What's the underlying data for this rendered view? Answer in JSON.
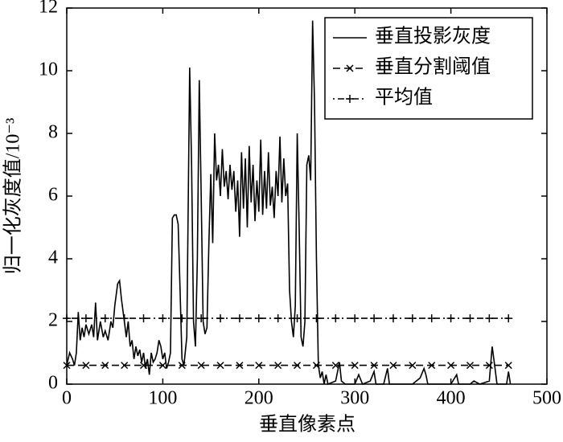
{
  "chart_data": {
    "type": "line",
    "xlabel": "垂直像素点",
    "ylabel": "归一化灰度值/10⁻³",
    "xlim": [
      0,
      500
    ],
    "xticks": [
      0,
      100,
      200,
      300,
      400,
      500
    ],
    "ylim": [
      0,
      12
    ],
    "yticks": [
      0,
      2,
      4,
      6,
      8,
      10,
      12
    ],
    "legend": "upper right",
    "grid": false,
    "series": [
      {
        "name": "垂直投影灰度",
        "color": "#000000",
        "linestyle": "solid",
        "marker": "none",
        "x": [
          0,
          3,
          6,
          8,
          10,
          12,
          14,
          16,
          18,
          20,
          23,
          26,
          28,
          30,
          32,
          35,
          38,
          40,
          43,
          46,
          48,
          50,
          53,
          55,
          57,
          60,
          62,
          64,
          66,
          68,
          70,
          72,
          74,
          76,
          78,
          80,
          82,
          84,
          86,
          88,
          90,
          92,
          94,
          96,
          98,
          100,
          102,
          104,
          106,
          108,
          110,
          112,
          114,
          116,
          118,
          120,
          122,
          125,
          128,
          130,
          132,
          134,
          136,
          138,
          140,
          142,
          144,
          146,
          148,
          150,
          152,
          154,
          156,
          158,
          160,
          162,
          164,
          166,
          168,
          170,
          172,
          174,
          176,
          178,
          180,
          182,
          184,
          186,
          188,
          190,
          192,
          194,
          196,
          198,
          200,
          202,
          204,
          206,
          208,
          210,
          212,
          214,
          216,
          218,
          220,
          222,
          224,
          226,
          228,
          230,
          232,
          234,
          236,
          238,
          240,
          242,
          244,
          246,
          248,
          250,
          252,
          254,
          256,
          258,
          260,
          262,
          264,
          266,
          268,
          270,
          272,
          280,
          284,
          286,
          290,
          300,
          304,
          308,
          316,
          320,
          322,
          330,
          334,
          336,
          360,
          368,
          372,
          374,
          376,
          400,
          406,
          408,
          420,
          424,
          430,
          440,
          443,
          446,
          448,
          458,
          460,
          462
        ],
        "values": [
          0.6,
          1.0,
          0.8,
          0.6,
          1.0,
          2.3,
          1.4,
          1.8,
          1.5,
          1.9,
          1.6,
          1.9,
          1.5,
          2.6,
          1.4,
          2.0,
          1.5,
          1.7,
          1.4,
          2.0,
          1.8,
          2.5,
          3.2,
          3.3,
          2.7,
          2.0,
          1.5,
          2.0,
          1.2,
          1.4,
          0.8,
          1.2,
          0.9,
          1.1,
          0.7,
          1.0,
          0.5,
          0.8,
          0.3,
          1.0,
          0.7,
          0.8,
          1.0,
          1.4,
          1.2,
          0.8,
          1.0,
          0.5,
          0.7,
          1.0,
          5.3,
          5.4,
          5.4,
          5.1,
          3.0,
          0.8,
          0.6,
          1.5,
          10.1,
          7.0,
          2.0,
          1.2,
          4.0,
          9.7,
          6.0,
          2.0,
          1.6,
          1.8,
          4.5,
          6.7,
          4.5,
          8.0,
          6.5,
          7.0,
          6.0,
          7.5,
          6.3,
          6.8,
          5.9,
          7.0,
          6.2,
          6.8,
          5.5,
          6.5,
          4.7,
          7.4,
          5.6,
          7.2,
          5.0,
          7.6,
          5.8,
          7.0,
          5.2,
          6.5,
          5.5,
          7.8,
          5.4,
          6.8,
          5.6,
          7.4,
          5.7,
          6.3,
          5.3,
          6.8,
          6.0,
          7.9,
          5.8,
          7.2,
          6.0,
          6.4,
          3.0,
          2.0,
          1.5,
          2.5,
          8.0,
          5.0,
          1.5,
          1.2,
          2.0,
          7.0,
          7.3,
          6.5,
          11.6,
          9.0,
          4.0,
          0.6,
          0.2,
          0.4,
          0.0,
          0.3,
          0.0,
          0.1,
          0.7,
          0.1,
          0.0,
          0.0,
          0.3,
          0.0,
          0.1,
          0.4,
          0.0,
          0.0,
          0.5,
          0.0,
          0.0,
          0.2,
          0.5,
          0.3,
          0.0,
          0.0,
          0.3,
          0.0,
          0.0,
          0.1,
          0.0,
          0.1,
          1.2,
          0.5,
          0.0,
          0.0,
          0.4,
          0.0
        ]
      },
      {
        "name": "垂直分割阈值",
        "color": "#000000",
        "linestyle": "dashed",
        "marker": "x",
        "x": [
          0,
          20,
          40,
          60,
          80,
          100,
          120,
          140,
          160,
          180,
          200,
          220,
          240,
          260,
          280,
          300,
          320,
          340,
          360,
          380,
          400,
          420,
          440,
          460
        ],
        "values": [
          0.6,
          0.6,
          0.6,
          0.6,
          0.6,
          0.6,
          0.6,
          0.6,
          0.6,
          0.6,
          0.6,
          0.6,
          0.6,
          0.6,
          0.6,
          0.6,
          0.6,
          0.6,
          0.6,
          0.6,
          0.6,
          0.6,
          0.6,
          0.6
        ]
      },
      {
        "name": "平均值",
        "color": "#000000",
        "linestyle": "dashdot",
        "marker": "+",
        "x": [
          0,
          20,
          40,
          60,
          80,
          100,
          120,
          140,
          160,
          180,
          200,
          220,
          240,
          260,
          280,
          300,
          320,
          340,
          360,
          380,
          400,
          420,
          440,
          460
        ],
        "values": [
          2.1,
          2.1,
          2.1,
          2.1,
          2.1,
          2.1,
          2.1,
          2.1,
          2.1,
          2.1,
          2.1,
          2.1,
          2.1,
          2.1,
          2.1,
          2.1,
          2.1,
          2.1,
          2.1,
          2.1,
          2.1,
          2.1,
          2.1,
          2.1
        ]
      }
    ]
  }
}
